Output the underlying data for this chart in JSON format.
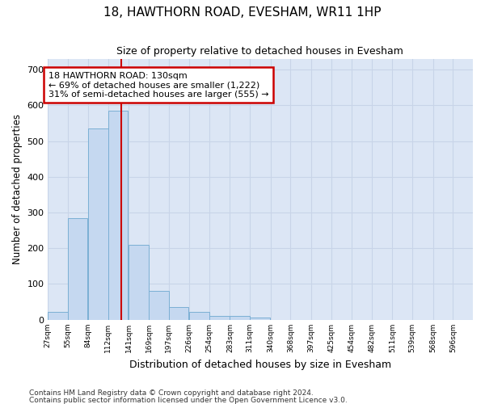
{
  "title": "18, HAWTHORN ROAD, EVESHAM, WR11 1HP",
  "subtitle": "Size of property relative to detached houses in Evesham",
  "xlabel": "Distribution of detached houses by size in Evesham",
  "ylabel": "Number of detached properties",
  "footer1": "Contains HM Land Registry data © Crown copyright and database right 2024.",
  "footer2": "Contains public sector information licensed under the Open Government Licence v3.0.",
  "bar_values": [
    22,
    285,
    535,
    585,
    210,
    80,
    35,
    22,
    10,
    10,
    5,
    0,
    0,
    0,
    0,
    0,
    0,
    0,
    0,
    0,
    0
  ],
  "bin_edges": [
    27,
    55,
    84,
    112,
    141,
    169,
    197,
    226,
    254,
    283,
    311,
    340,
    368,
    397,
    425,
    454,
    482,
    511,
    539,
    568,
    596
  ],
  "xlabels": [
    "27sqm",
    "55sqm",
    "84sqm",
    "112sqm",
    "141sqm",
    "169sqm",
    "197sqm",
    "226sqm",
    "254sqm",
    "283sqm",
    "311sqm",
    "340sqm",
    "368sqm",
    "397sqm",
    "425sqm",
    "454sqm",
    "482sqm",
    "511sqm",
    "539sqm",
    "568sqm",
    "596sqm"
  ],
  "ylim": [
    0,
    730
  ],
  "yticks": [
    0,
    100,
    200,
    300,
    400,
    500,
    600,
    700
  ],
  "bar_color": "#c5d8f0",
  "bar_edge_color": "#7bafd4",
  "red_line_x": 130,
  "annotation_title": "18 HAWTHORN ROAD: 130sqm",
  "annotation_line1": "← 69% of detached houses are smaller (1,222)",
  "annotation_line2": "31% of semi-detached houses are larger (555) →",
  "annotation_box_facecolor": "#ffffff",
  "annotation_box_edgecolor": "#cc0000",
  "grid_color": "#c8d4e8",
  "fig_bg_color": "#ffffff",
  "plot_bg_color": "#dce6f5"
}
